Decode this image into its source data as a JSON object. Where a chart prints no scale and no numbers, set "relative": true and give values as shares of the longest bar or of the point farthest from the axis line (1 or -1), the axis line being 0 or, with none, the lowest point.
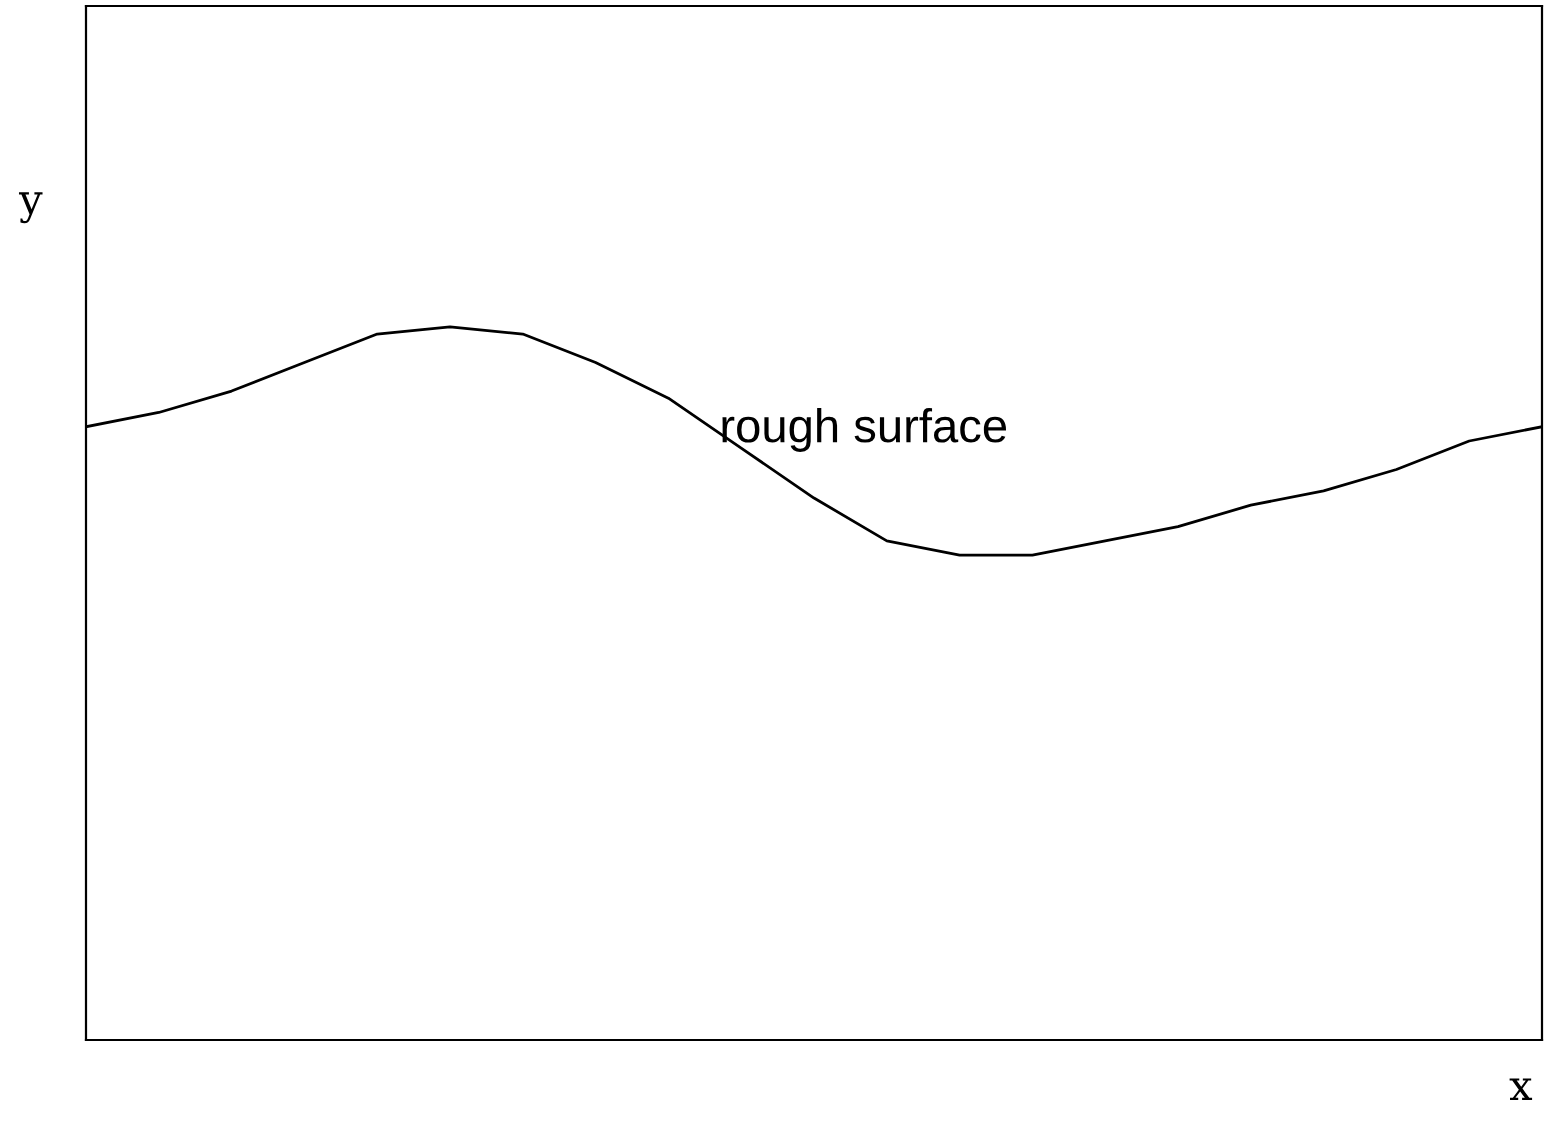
{
  "chart_data": {
    "type": "line",
    "relative": true,
    "xlabel": "x",
    "ylabel": "y",
    "annotations": [
      "rough surface"
    ],
    "categories": [
      null,
      null,
      null,
      null,
      null,
      null,
      null,
      null,
      null,
      null,
      null,
      null,
      null,
      null,
      null,
      null,
      null,
      null,
      null,
      null,
      null
    ],
    "series": [
      {
        "color": "#000000",
        "values": [
          0.86,
          0.88,
          0.91,
          0.95,
          0.99,
          1,
          0.99,
          0.95,
          0.9,
          0.83,
          0.76,
          0.7,
          0.68,
          0.68,
          0.7,
          0.72,
          0.75,
          0.77,
          0.8,
          0.84,
          0.86
        ]
      }
    ]
  }
}
